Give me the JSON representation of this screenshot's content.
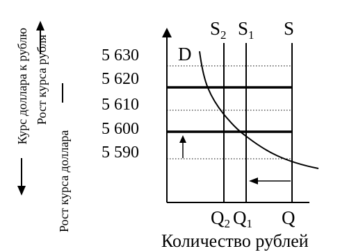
{
  "chart_data": {
    "type": "supply-demand diagram",
    "y_ticks": [
      "5 630",
      "5 620",
      "5 610",
      "5 600",
      "5 590"
    ],
    "y_values": [
      5630,
      5620,
      5610,
      5600,
      5590
    ],
    "demand_label": "D",
    "supply_labels": {
      "s2_main": "S",
      "s2_sub": "2",
      "s1_main": "S",
      "s1_sub": "1",
      "s": "S"
    },
    "quantity_labels": {
      "q2_main": "Q",
      "q2_sub": "2",
      "q1_main": "Q",
      "q1_sub": "1",
      "q": "Q"
    },
    "x_axis_title": "Количество рублей",
    "y_axis_titles": {
      "outer": "Курс доллара к рублю",
      "ruble_growth": "Рост курса рубля",
      "dollar_growth": "Рост курса доллара"
    },
    "equilibrium_rates": {
      "initial": 5590,
      "after_shift": 5600,
      "after_second_shift": 5620
    }
  }
}
